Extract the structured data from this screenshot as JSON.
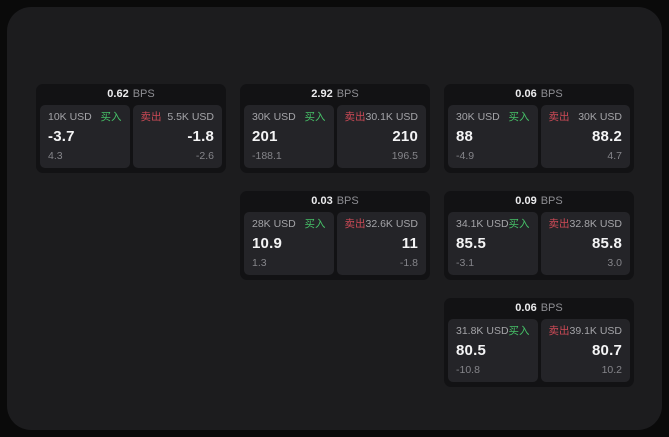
{
  "labels": {
    "bps_unit": "BPS",
    "buy": "买入",
    "sell": "卖出"
  },
  "colors": {
    "page_bg": "#0a0a0a",
    "panel_bg": "#1c1c1e",
    "card_bg": "#121214",
    "tile_bg": "#242428",
    "buy_accent": "#46c268",
    "sell_accent": "#cd4a56",
    "price_text": "#f4f4f5",
    "label_text": "#a4a4a8",
    "muted_text": "#85858a"
  },
  "cards": [
    {
      "row": 1,
      "col": 1,
      "bps": "0.62",
      "buy": {
        "amount": "10K USD",
        "price": "-3.7",
        "delta": "4.3"
      },
      "sell": {
        "amount": "5.5K USD",
        "price": "-1.8",
        "delta": "-2.6"
      }
    },
    {
      "row": 1,
      "col": 2,
      "bps": "2.92",
      "buy": {
        "amount": "30K USD",
        "price": "201",
        "delta": "-188.1"
      },
      "sell": {
        "amount": "30.1K USD",
        "price": "210",
        "delta": "196.5"
      }
    },
    {
      "row": 1,
      "col": 3,
      "bps": "0.06",
      "buy": {
        "amount": "30K USD",
        "price": "88",
        "delta": "-4.9"
      },
      "sell": {
        "amount": "30K USD",
        "price": "88.2",
        "delta": "4.7"
      }
    },
    {
      "row": 2,
      "col": 2,
      "bps": "0.03",
      "buy": {
        "amount": "28K USD",
        "price": "10.9",
        "delta": "1.3"
      },
      "sell": {
        "amount": "32.6K USD",
        "price": "11",
        "delta": "-1.8"
      }
    },
    {
      "row": 2,
      "col": 3,
      "bps": "0.09",
      "buy": {
        "amount": "34.1K USD",
        "price": "85.5",
        "delta": "-3.1"
      },
      "sell": {
        "amount": "32.8K USD",
        "price": "85.8",
        "delta": "3.0"
      }
    },
    {
      "row": 3,
      "col": 3,
      "bps": "0.06",
      "buy": {
        "amount": "31.8K USD",
        "price": "80.5",
        "delta": "-10.8"
      },
      "sell": {
        "amount": "39.1K USD",
        "price": "80.7",
        "delta": "10.2"
      }
    }
  ]
}
